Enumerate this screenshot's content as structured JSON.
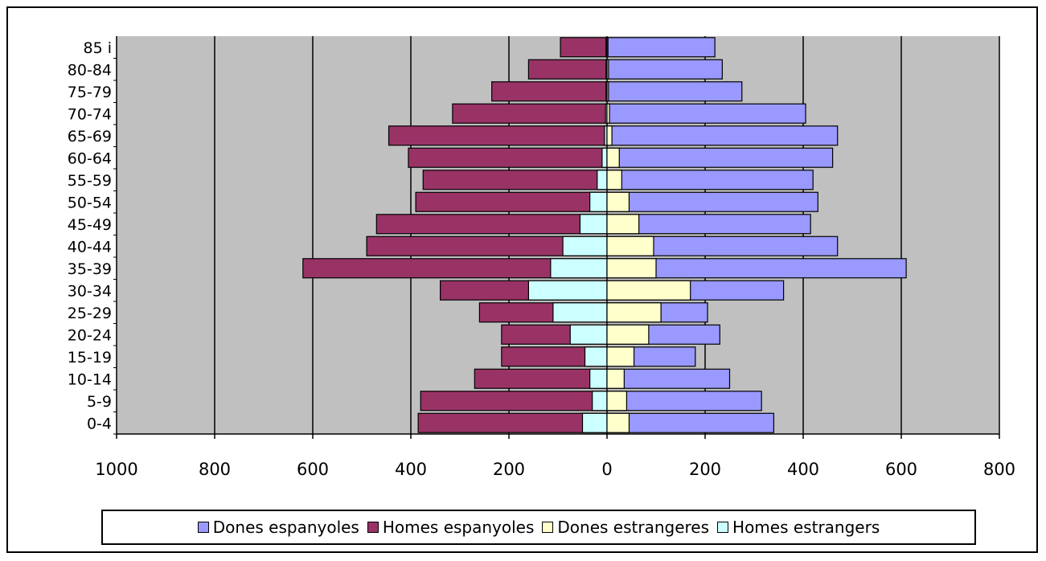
{
  "chart_data": {
    "type": "bar",
    "orientation": "horizontal",
    "subtype": "population-pyramid",
    "title": "",
    "xlabel": "",
    "ylabel": "",
    "categories": [
      "0-4",
      "5-9",
      "10-14",
      "15-19",
      "20-24",
      "25-29",
      "30-34",
      "35-39",
      "40-44",
      "45-49",
      "50-54",
      "55-59",
      "60-64",
      "65-69",
      "70-74",
      "75-79",
      "80-84",
      "85 i"
    ],
    "xlim": [
      -1000,
      800
    ],
    "xticks": [
      -1000,
      -800,
      -600,
      -400,
      -200,
      0,
      200,
      400,
      600,
      800
    ],
    "xtick_labels": [
      "1000",
      "800",
      "600",
      "400",
      "200",
      "0",
      "200",
      "400",
      "600",
      "800"
    ],
    "grid": "vertical major gridlines",
    "plot_background": "#c0c0c0",
    "legend_position": "bottom",
    "series": [
      {
        "name": "Dones espanyoles",
        "side": "right",
        "color": "#9999ff",
        "values": [
          340,
          315,
          250,
          180,
          230,
          205,
          360,
          610,
          470,
          415,
          430,
          420,
          460,
          470,
          405,
          275,
          235,
          220
        ]
      },
      {
        "name": "Homes espanyoles",
        "side": "left",
        "color": "#993366",
        "values": [
          385,
          380,
          270,
          215,
          215,
          260,
          340,
          620,
          490,
          470,
          390,
          375,
          405,
          445,
          315,
          235,
          160,
          95
        ]
      },
      {
        "name": "Dones estrangeres",
        "side": "right",
        "color": "#ffffcc",
        "values": [
          45,
          40,
          35,
          55,
          85,
          110,
          170,
          100,
          95,
          65,
          45,
          30,
          25,
          10,
          5,
          3,
          3,
          2
        ]
      },
      {
        "name": "Homes estrangers",
        "side": "left",
        "color": "#ccffff",
        "values": [
          50,
          30,
          35,
          45,
          75,
          110,
          160,
          115,
          90,
          55,
          35,
          20,
          10,
          5,
          3,
          2,
          2,
          2
        ]
      }
    ]
  }
}
